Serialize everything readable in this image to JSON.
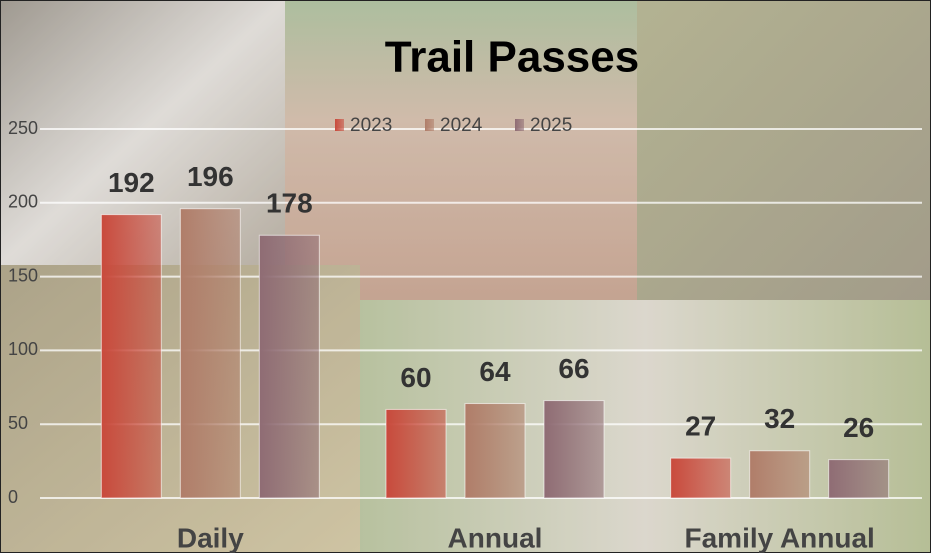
{
  "chart_data": {
    "type": "bar",
    "title": "Trail Passes",
    "categories": [
      "Daily",
      "Annual",
      "Family Annual"
    ],
    "series": [
      {
        "name": "2023",
        "color": "#c94a3c",
        "values": [
          192,
          60,
          27
        ]
      },
      {
        "name": "2024",
        "color": "#b07d69",
        "values": [
          196,
          64,
          32
        ]
      },
      {
        "name": "2025",
        "color": "#8f6c74",
        "values": [
          178,
          66,
          26
        ]
      }
    ],
    "ylim": [
      0,
      250
    ],
    "yticks": [
      0,
      50,
      100,
      150,
      200,
      250
    ],
    "grid": true,
    "legend": "top"
  }
}
